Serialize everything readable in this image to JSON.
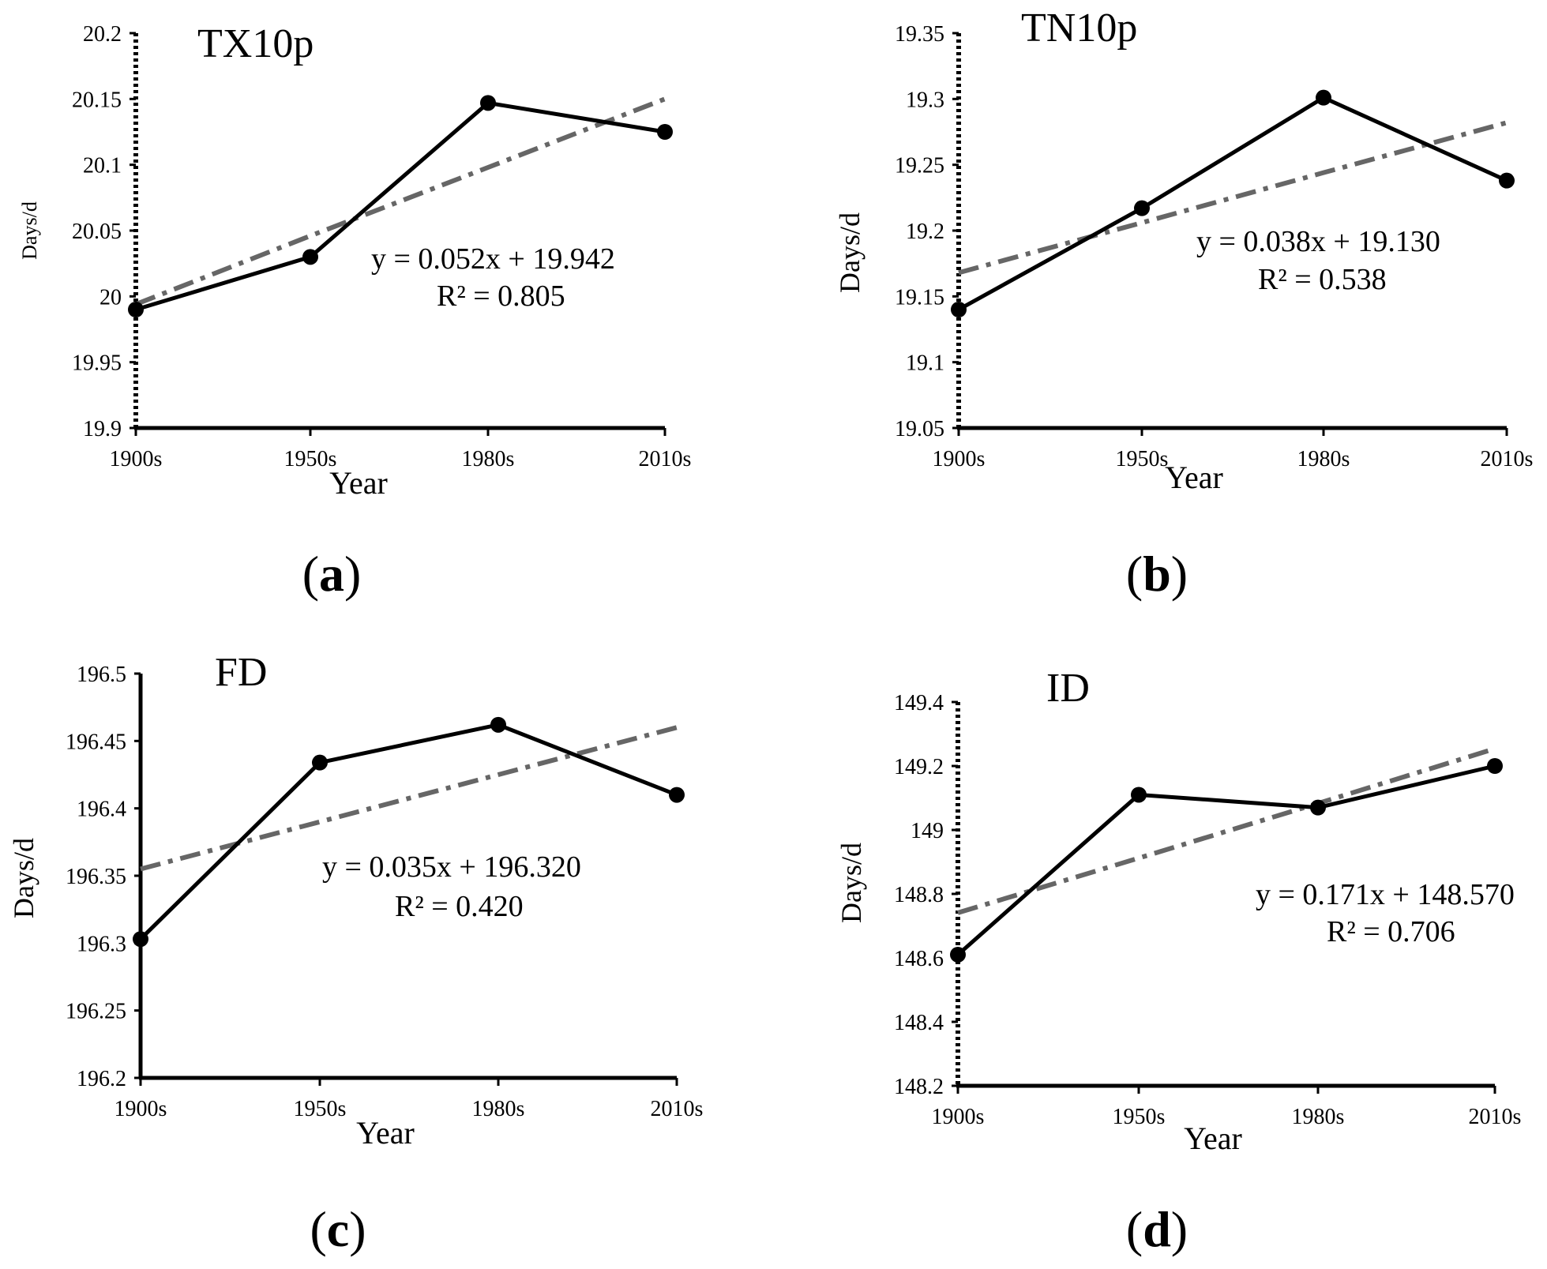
{
  "chart_data": [
    {
      "type": "line",
      "title": "TX10p",
      "xlabel": "Year",
      "ylabel": "Days/d",
      "categories": [
        "1900s",
        "1950s",
        "1980s",
        "2010s"
      ],
      "series": [
        {
          "name": "TX10p",
          "values": [
            19.99,
            20.03,
            20.147,
            20.125
          ]
        },
        {
          "name": "Linear trend",
          "style": "dash-dot",
          "values": [
            19.994,
            20.046,
            20.098,
            20.15
          ]
        }
      ],
      "ylim": [
        19.9,
        20.2
      ],
      "yticks": [
        "19.9",
        "19.95",
        "20",
        "20.05",
        "20.1",
        "20.15",
        "20.2"
      ],
      "equation": "y = 0.052x + 19.942",
      "r2": "R² = 0.805",
      "panel": "(a)"
    },
    {
      "type": "line",
      "title": "TN10p",
      "xlabel": "Year",
      "ylabel": "Days/d",
      "categories": [
        "1900s",
        "1950s",
        "1980s",
        "2010s"
      ],
      "series": [
        {
          "name": "TN10p",
          "values": [
            19.14,
            19.217,
            19.301,
            19.238
          ]
        },
        {
          "name": "Linear trend",
          "style": "dash-dot",
          "values": [
            19.168,
            19.206,
            19.244,
            19.282
          ]
        }
      ],
      "ylim": [
        19.05,
        19.35
      ],
      "yticks": [
        "19.05",
        "19.1",
        "19.15",
        "19.2",
        "19.25",
        "19.3",
        "19.35"
      ],
      "equation": "y = 0.038x + 19.130",
      "r2": "R² = 0.538",
      "panel": "(b)"
    },
    {
      "type": "line",
      "title": "FD",
      "xlabel": "Year",
      "ylabel": "Days/d",
      "categories": [
        "1900s",
        "1950s",
        "1980s",
        "2010s"
      ],
      "series": [
        {
          "name": "FD",
          "values": [
            196.303,
            196.434,
            196.462,
            196.41
          ]
        },
        {
          "name": "Linear trend",
          "style": "dash-dot",
          "values": [
            196.355,
            196.39,
            196.425,
            196.46
          ]
        }
      ],
      "ylim": [
        196.2,
        196.5
      ],
      "yticks": [
        "196.2",
        "196.25",
        "196.3",
        "196.35",
        "196.4",
        "196.45",
        "196.5"
      ],
      "equation": "y = 0.035x + 196.320",
      "r2": "R² = 0.420",
      "panel": "(c)"
    },
    {
      "type": "line",
      "title": "ID",
      "xlabel": "Year",
      "ylabel": "Days/d",
      "categories": [
        "1900s",
        "1950s",
        "1980s",
        "2010s"
      ],
      "series": [
        {
          "name": "ID",
          "values": [
            148.61,
            149.11,
            149.07,
            149.2
          ]
        },
        {
          "name": "Linear trend",
          "style": "dash-dot",
          "values": [
            148.741,
            148.912,
            149.083,
            149.254
          ]
        }
      ],
      "ylim": [
        148.2,
        149.4
      ],
      "yticks": [
        "148.2",
        "148.4",
        "148.6",
        "148.8",
        "149",
        "149.2",
        "149.4"
      ],
      "equation": "y = 0.171x + 148.570",
      "r2": "R² = 0.706",
      "panel": "(d)"
    }
  ],
  "colors": {
    "data_line": "#000000",
    "trend_line": "#666666",
    "axis": "#000000"
  }
}
